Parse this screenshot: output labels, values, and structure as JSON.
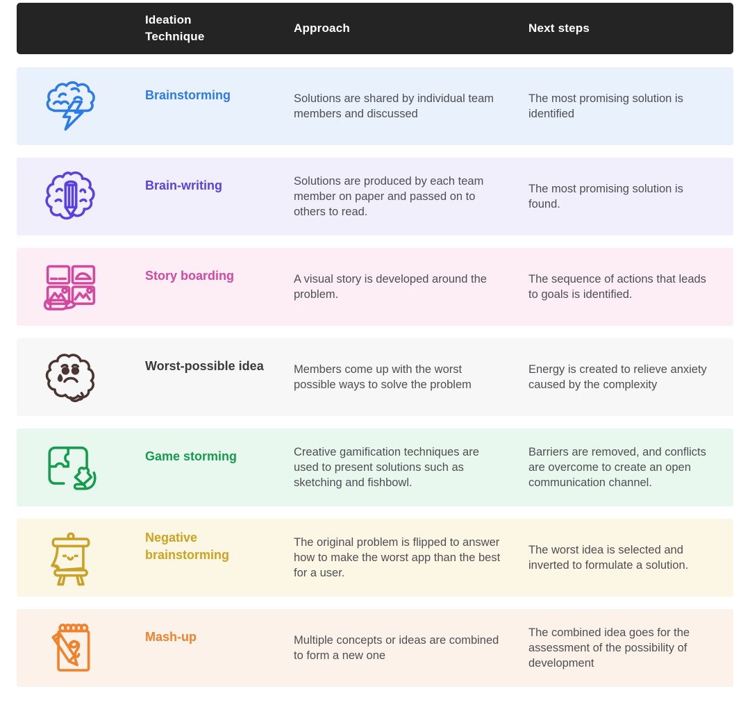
{
  "header": {
    "columns": [
      "Ideation Technique",
      "Approach",
      "Next steps"
    ],
    "bg_color": "#242424",
    "text_color": "#ffffff"
  },
  "body_text_color": "#4e4e54",
  "rows": [
    {
      "technique": "Brainstorming",
      "approach": "Solutions are shared by individual team members and discussed",
      "next_steps": "The most promising solution is identified",
      "icon": "brain-lightning-icon",
      "accent": "#2d7be8",
      "icon_color": "#2d7be8",
      "bg": "#e9f1fc"
    },
    {
      "technique": "Brain-writing",
      "approach": "Solutions are produced by each team member on paper and passed on to others to read.",
      "next_steps": "The most promising solution is found.",
      "icon": "brain-pencil-icon",
      "accent": "#5a41e0",
      "icon_color": "#5a41e0",
      "bg": "#f2effc"
    },
    {
      "technique": "Story boarding",
      "approach": "A visual story is developed around the problem.",
      "next_steps": "The sequence of actions that leads to goals is identified.",
      "icon": "storyboard-icon",
      "accent": "#d4499f",
      "icon_color": "#d4499f",
      "bg": "#fdeef6"
    },
    {
      "technique": "Worst-possible idea",
      "approach": "Members come up with the worst possible ways to solve the problem",
      "next_steps": "Energy is created to relieve anxiety caused by the complexity",
      "icon": "sad-brain-icon",
      "accent": "#3a393d",
      "icon_color": "#4a3531",
      "bg": "#f7f7f8"
    },
    {
      "technique": "Game storming",
      "approach": "Creative gamification techniques are used to present solutions such as sketching and fishbowl.",
      "next_steps": "Barriers are removed, and conflicts are overcome to create an open communication channel.",
      "icon": "puzzle-hand-icon",
      "accent": "#149d4d",
      "icon_color": "#149d4d",
      "bg": "#e9f8ef"
    },
    {
      "technique": "Negative brainstorming",
      "approach": "The original problem is flipped to answer how to make the worst app than the best for a user.",
      "next_steps": "The worst idea is selected and inverted to formulate a solution.",
      "icon": "easel-icon",
      "accent": "#cfa31e",
      "icon_color": "#c9a227",
      "bg": "#fcf7e5"
    },
    {
      "technique": "Mash-up",
      "approach": "Multiple concepts or ideas are combined to form a new one",
      "next_steps": "The combined idea goes for the assessment of the possibility of development",
      "icon": "notepad-pencil-icon",
      "accent": "#f0822c",
      "icon_color": "#f0822c",
      "bg": "#fdf2e9"
    }
  ]
}
